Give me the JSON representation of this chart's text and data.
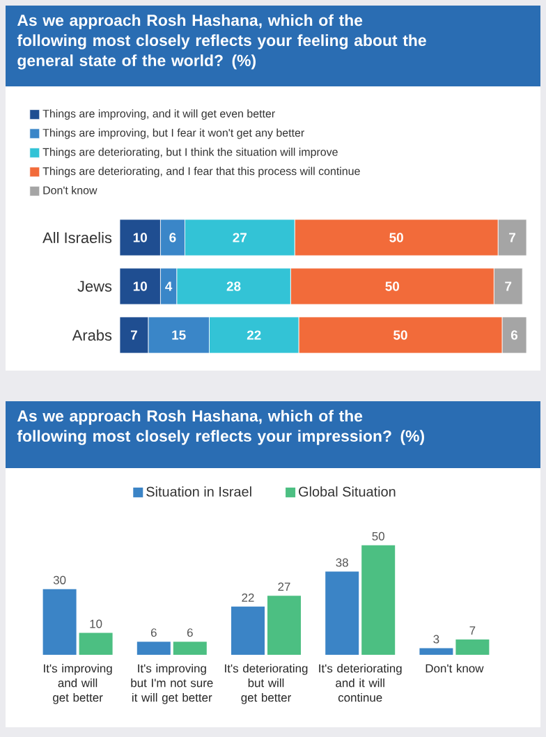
{
  "chart_data": [
    {
      "type": "bar",
      "orientation": "horizontal",
      "stacked": true,
      "data_labels": true,
      "legend": "top left",
      "title": "As we approach Rosh Hashana, which of the following most closely reflects your feeling about the general state of the world? (%)",
      "categories": [
        "All Israelis",
        "Jews",
        "Arabs"
      ],
      "series": [
        {
          "name": "Things are improving, and it will get even better",
          "color": "#1f4e91",
          "values": [
            10,
            10,
            7
          ]
        },
        {
          "name": "Things are improving, but I fear it won't get any better",
          "color": "#3a86c8",
          "values": [
            6,
            4,
            15
          ]
        },
        {
          "name": "Things are deteriorating, but I think the situation will improve",
          "color": "#33c3d6",
          "values": [
            27,
            28,
            22
          ]
        },
        {
          "name": "Things are deteriorating, and I fear that this process will continue",
          "color": "#f26b3a",
          "values": [
            50,
            50,
            50
          ]
        },
        {
          "name": "Don't know",
          "color": "#a5a5a5",
          "values": [
            7,
            7,
            6
          ]
        }
      ]
    },
    {
      "type": "bar",
      "data_labels": true,
      "legend": "top",
      "title": "As we approach Rosh Hashana, which of the following most closely reflects your impression? (%)",
      "categories": [
        "It's improving and will get better",
        "It's improving but I'm not sure it will get better",
        "It's deteriorating but will get better",
        "It's deteriorating and it will continue",
        "Don't know"
      ],
      "series": [
        {
          "name": "Situation in Israel",
          "color": "#3b84c6",
          "values": [
            30,
            6,
            22,
            38,
            3
          ]
        },
        {
          "name": "Global Situation",
          "color": "#4cbf82",
          "values": [
            10,
            6,
            27,
            50,
            7
          ]
        }
      ]
    }
  ]
}
